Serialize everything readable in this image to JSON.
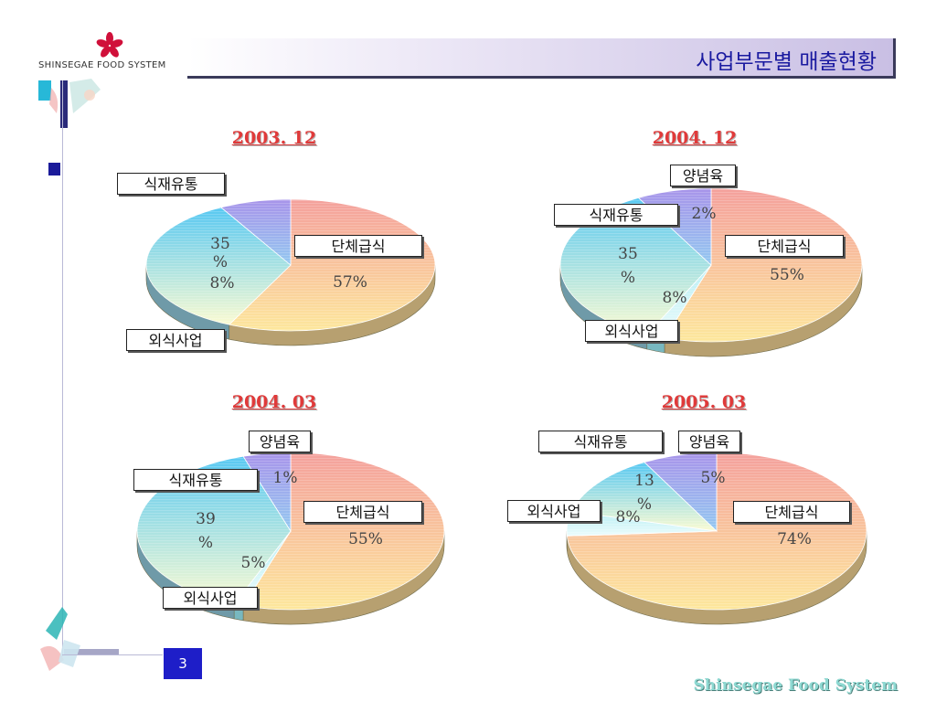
{
  "header": {
    "logo_text": "SHINSEGAE FOOD SYSTEM",
    "page_title": "사업부문별 매출현황"
  },
  "footer": {
    "page_number": "3",
    "brand": "Shinsegae Food System"
  },
  "colors": {
    "title_text": "#1a1aa0",
    "chart_title": "#e03a3a",
    "group_meal": "#f6b4a2",
    "food_distribution": "#8fdcf2",
    "dining": "#b7a8ea",
    "seasoning": "#c8f4f6"
  },
  "chart_data": [
    {
      "type": "pie",
      "title": "2003. 12",
      "categories": [
        "단체급식",
        "식재유통",
        "외식사업"
      ],
      "values": [
        57,
        35,
        8
      ],
      "value_labels": [
        "57%",
        "35\n%",
        "8%"
      ]
    },
    {
      "type": "pie",
      "title": "2004. 12",
      "categories": [
        "단체급식",
        "양념육",
        "식재유통",
        "외식사업"
      ],
      "values": [
        55,
        2,
        35,
        8
      ],
      "value_labels": [
        "55%",
        "2%",
        "35\n%",
        "8%"
      ]
    },
    {
      "type": "pie",
      "title": "2004. 03",
      "categories": [
        "단체급식",
        "양념육",
        "식재유통",
        "외식사업"
      ],
      "values": [
        55,
        1,
        39,
        5
      ],
      "value_labels": [
        "55%",
        "1%",
        "39\n%",
        "5%"
      ]
    },
    {
      "type": "pie",
      "title": "2005. 03",
      "categories": [
        "단체급식",
        "양념육",
        "식재유통",
        "외식사업"
      ],
      "values": [
        74,
        5,
        13,
        8
      ],
      "value_labels": [
        "74%",
        "5%",
        "13\n%",
        "8%"
      ]
    }
  ]
}
